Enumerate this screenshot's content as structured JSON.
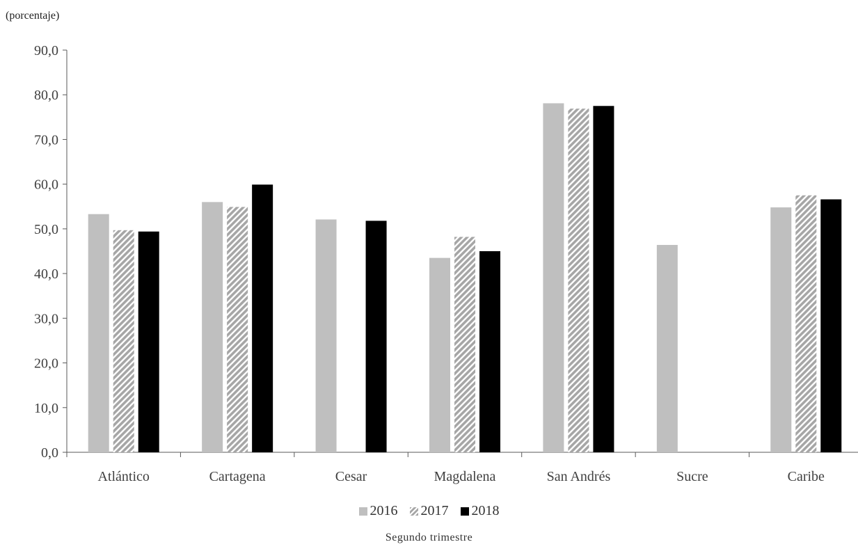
{
  "chart_data": {
    "type": "bar",
    "unit_label": "(porcentaje)",
    "categories": [
      "Atlántico",
      "Cartagena",
      "Cesar",
      "Magdalena",
      "San Andrés",
      "Sucre",
      "Caribe"
    ],
    "series": [
      {
        "name": "2016",
        "values": [
          53.3,
          56.0,
          52.1,
          43.5,
          78.1,
          46.4,
          54.8
        ],
        "color": "#bfbfbf",
        "pattern": "solid"
      },
      {
        "name": "2017",
        "values": [
          49.7,
          54.9,
          null,
          48.2,
          76.9,
          null,
          57.5
        ],
        "color": "#a6a6a6",
        "pattern": "diagonal-hatch"
      },
      {
        "name": "2018",
        "values": [
          49.4,
          59.9,
          51.8,
          45.0,
          77.5,
          null,
          56.6
        ],
        "color": "#000000",
        "pattern": "solid"
      }
    ],
    "ylim": [
      0,
      90
    ],
    "yticks": [
      "0,0",
      "10,0",
      "20,0",
      "30,0",
      "40,0",
      "50,0",
      "60,0",
      "70,0",
      "80,0",
      "90,0"
    ],
    "xlabel": "Segundo trimestre",
    "ylabel": "",
    "grid": false,
    "legend_position": "bottom"
  }
}
